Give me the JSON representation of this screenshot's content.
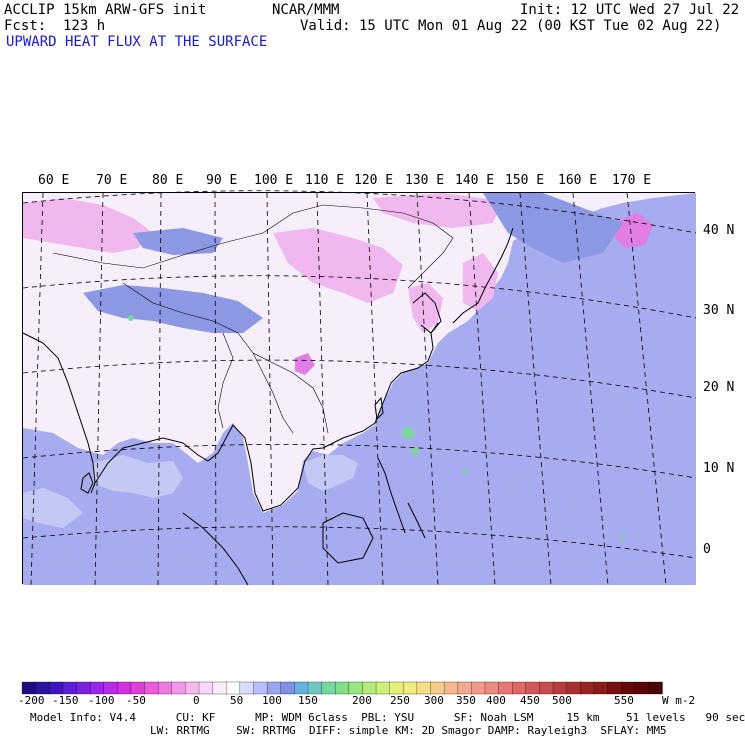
{
  "header": {
    "model_line": "ACCLIP 15km ARW-GFS init",
    "center_line": "NCAR/MMM",
    "init_line": "Init: 12 UTC Wed 27 Jul 22",
    "fcst_line": "Fcst:  123 h",
    "valid_line": "Valid: 15 UTC Mon 01 Aug 22 (00 KST Tue 02 Aug 22)",
    "subtitle": "UPWARD HEAT FLUX AT THE SURFACE"
  },
  "map": {
    "lon_labels": [
      "60 E",
      "70 E",
      "80 E",
      "90 E",
      "100 E",
      "110 E",
      "120 E",
      "130 E",
      "140 E",
      "150 E",
      "160 E",
      "170 E"
    ],
    "lat_labels": [
      "40 N",
      "30 N",
      "20 N",
      "10 N",
      "0"
    ],
    "colors": {
      "land_background": "#f6eefa",
      "ocean_low_flux": "#a7abef",
      "ocean_lighter": "#c4c8f5",
      "land_pink": "#f0b8ee",
      "land_magenta": "#e27de6",
      "mountain_blue": "#8d98e4",
      "green_hotspot": "#7cd69b",
      "coast_line": "#000000",
      "grid_line": "#000000"
    }
  },
  "colorbar": {
    "tick_labels": [
      "-200",
      "-150",
      "-100",
      "-50",
      "0",
      "50",
      "100",
      "150",
      "200",
      "250",
      "300",
      "350",
      "400",
      "450",
      "500",
      "550"
    ],
    "unit": "W m-2",
    "colors": [
      "#1c1082",
      "#2a14a0",
      "#3b18bd",
      "#5a1fd4",
      "#7a22e0",
      "#9a26ea",
      "#b82ae8",
      "#d030e0",
      "#e040d8",
      "#ea5cdc",
      "#f07ae2",
      "#f29ae8",
      "#f4baee",
      "#f8d8f4",
      "#fbecf8",
      "#ffffff",
      "#d8dcfa",
      "#b8befa",
      "#9aa4f0",
      "#8090e4",
      "#6ab0e0",
      "#6cc8c0",
      "#74d8a0",
      "#80e08a",
      "#98e680",
      "#b4ea78",
      "#cef07a",
      "#e2f07c",
      "#f0ec80",
      "#f4de86",
      "#f6cc8c",
      "#f6ba90",
      "#f4a890",
      "#f29a8a",
      "#ee8a80",
      "#e87874",
      "#e06868",
      "#d45858",
      "#c84a4a",
      "#b83c3c",
      "#a83030",
      "#982424",
      "#881a1a",
      "#781010",
      "#680808",
      "#580404",
      "#4a0202"
    ]
  },
  "footer": {
    "line1": "Model Info: V4.4      CU: KF      MP: WDM 6class  PBL: YSU      SF: Noah LSM     15 km    51 levels   90 sec",
    "line2": "LW: RRTMG    SW: RRTMG  DIFF: simple KM: 2D Smagor DAMP: Rayleigh3  SFLAY: MM5"
  }
}
